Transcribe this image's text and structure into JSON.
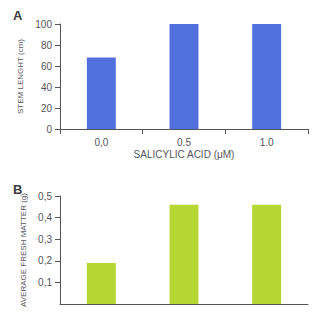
{
  "chart_data": [
    {
      "type": "bar",
      "title": "A",
      "categories": [
        "0,0",
        "0.5",
        "1.0"
      ],
      "values": [
        68,
        100,
        100
      ],
      "xlabel": "SALICYLIC ACID (μM)",
      "ylabel": "STEM LENGHT (cm)",
      "ylim": [
        0,
        100
      ],
      "yticks": [
        0,
        20,
        40,
        60,
        80,
        100
      ],
      "grid": false
    },
    {
      "type": "bar",
      "title": "B",
      "categories": [
        null,
        null,
        null
      ],
      "values": [
        0.19,
        0.46,
        0.46
      ],
      "ylabel": "AVERAGE FRESH MATTER (g)",
      "ylim": [
        0,
        0.5
      ],
      "yticks": [
        {
          "value": 0.1,
          "label": "0,1"
        },
        {
          "value": 0.2,
          "label": "0,2"
        },
        {
          "value": 0.3,
          "label": "0,3"
        },
        {
          "value": 0.4,
          "label": "0,4"
        },
        {
          "value": 0.5,
          "label": "0,5"
        }
      ],
      "tick_labels": "y",
      "grid": false
    }
  ]
}
